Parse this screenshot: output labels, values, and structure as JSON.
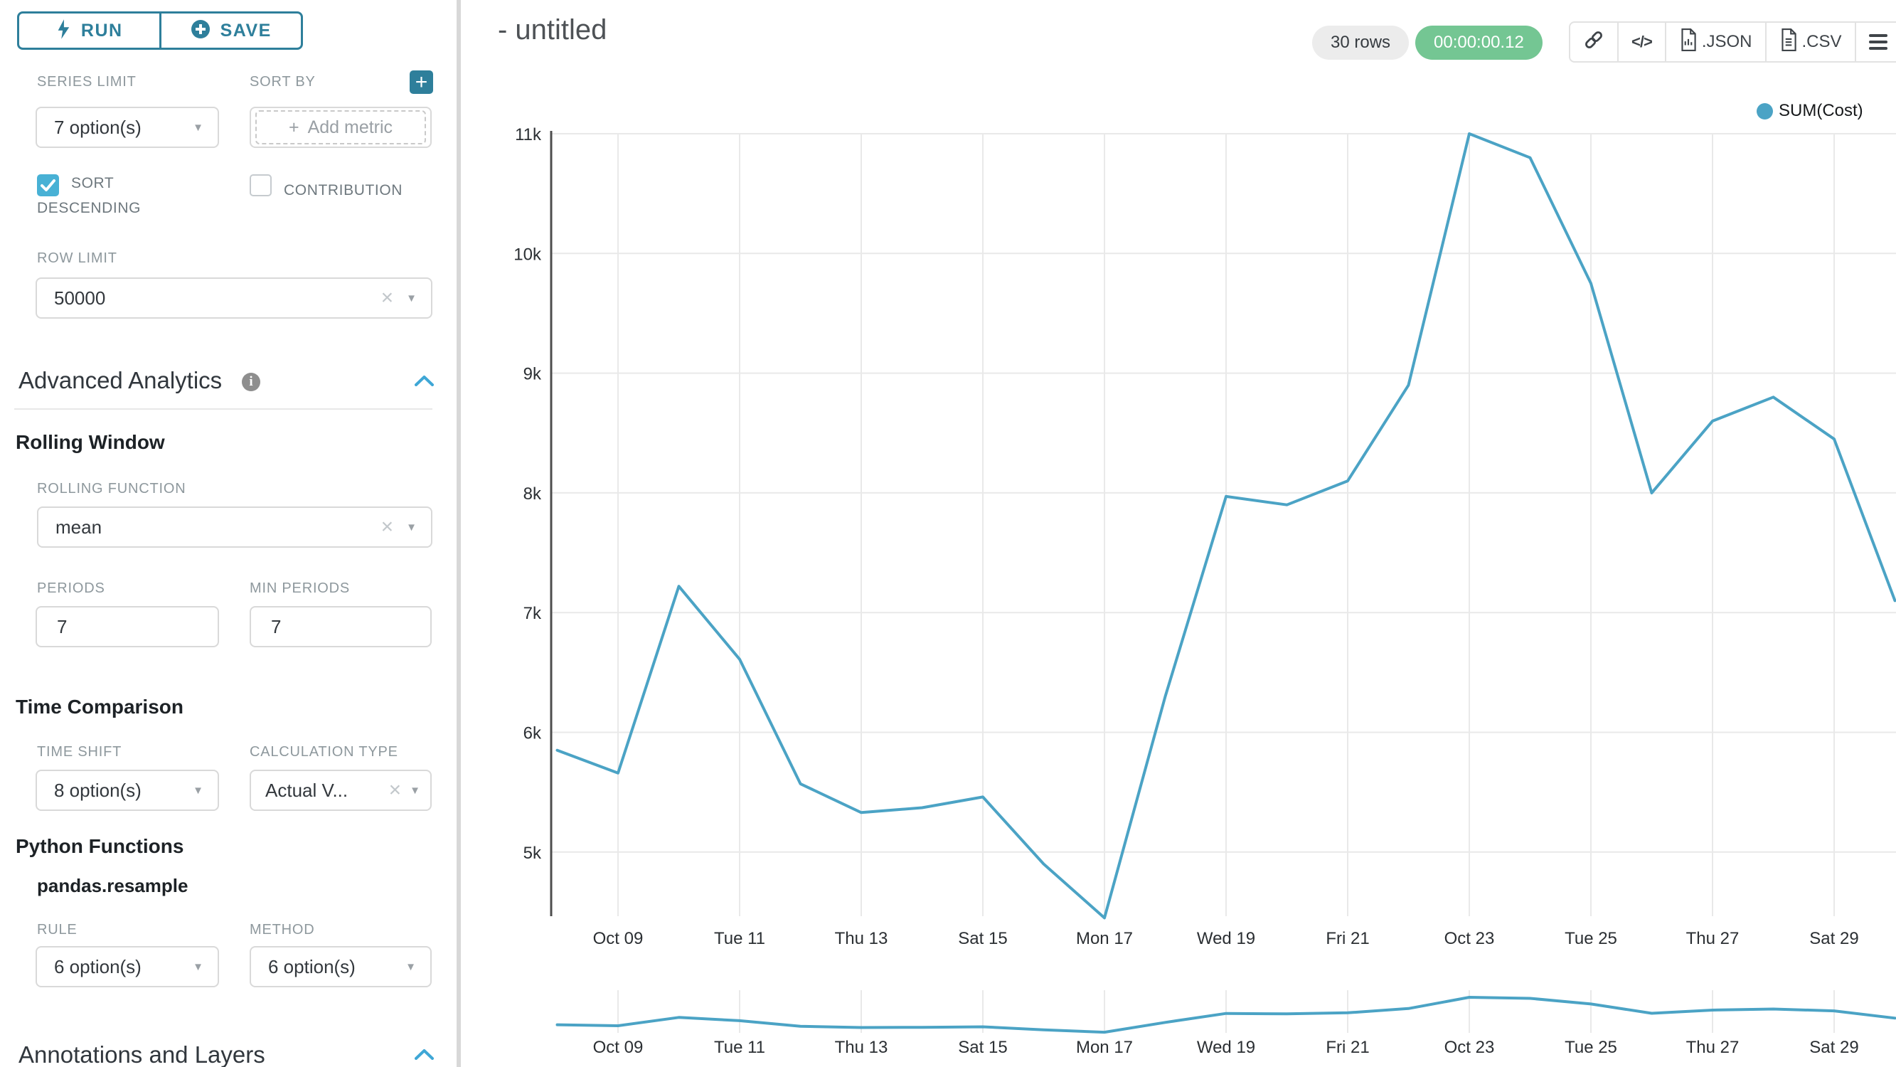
{
  "app": {
    "accent_teal": "#2E7F9B",
    "accent_blue": "#48B1D5",
    "chevron_blue": "#3FA7D6",
    "success_green": "#74C693",
    "line_color": "#4BA3C5"
  },
  "sidebar": {
    "run_label": "RUN",
    "save_label": "SAVE",
    "series_limit": {
      "label": "SERIES LIMIT",
      "value": "7 option(s)"
    },
    "sort_by": {
      "label": "SORT BY",
      "placeholder": "Add metric",
      "plus_sign": "+"
    },
    "sort_descending": {
      "label_line1": "SORT",
      "label_line2": "DESCENDING",
      "checked": true
    },
    "contribution": {
      "label": "CONTRIBUTION",
      "checked": false
    },
    "row_limit": {
      "label": "ROW LIMIT",
      "value": "50000"
    },
    "advanced_analytics": {
      "title": "Advanced Analytics"
    },
    "rolling_window": {
      "title": "Rolling Window",
      "rolling_function": {
        "label": "ROLLING FUNCTION",
        "value": "mean"
      },
      "periods": {
        "label": "PERIODS",
        "value": "7"
      },
      "min_periods": {
        "label": "MIN PERIODS",
        "value": "7"
      }
    },
    "time_comparison": {
      "title": "Time Comparison",
      "time_shift": {
        "label": "TIME SHIFT",
        "value": "8 option(s)"
      },
      "calculation_type": {
        "label": "CALCULATION TYPE",
        "value": "Actual V..."
      }
    },
    "python_functions": {
      "title": "Python Functions",
      "subtitle": "pandas.resample",
      "rule": {
        "label": "RULE",
        "value": "6 option(s)"
      },
      "method": {
        "label": "METHOD",
        "value": "6 option(s)"
      }
    },
    "annotations": {
      "title": "Annotations and Layers"
    }
  },
  "header": {
    "title": "- untitled",
    "row_count": "30 rows",
    "timer": "00:00:00.12",
    "export_buttons": [
      {
        "name": "share-link-button",
        "icon": "link-icon",
        "label": ""
      },
      {
        "name": "embed-code-button",
        "icon": "code-icon",
        "label": ""
      },
      {
        "name": "export-json-button",
        "icon": "file-json-icon",
        "label": ".JSON"
      },
      {
        "name": "export-csv-button",
        "icon": "file-csv-icon",
        "label": ".CSV"
      },
      {
        "name": "chart-menu-button",
        "icon": "menu-icon",
        "label": ""
      }
    ]
  },
  "chart_data": {
    "type": "line",
    "title": "",
    "legend_position": "top-right",
    "grid": true,
    "series": [
      {
        "name": "SUM(Cost)",
        "color": "#4BA3C5",
        "x": [
          "Oct 08",
          "Oct 09",
          "Oct 10",
          "Oct 11",
          "Oct 12",
          "Oct 13",
          "Oct 14",
          "Oct 15",
          "Oct 16",
          "Oct 17",
          "Oct 18",
          "Oct 19",
          "Oct 20",
          "Oct 21",
          "Oct 22",
          "Oct 23",
          "Oct 24",
          "Oct 25",
          "Oct 26",
          "Oct 27",
          "Oct 28",
          "Oct 29",
          "Oct 30"
        ],
        "values": [
          5850,
          5660,
          7220,
          6610,
          5570,
          5330,
          5370,
          5460,
          4900,
          4450,
          6300,
          7970,
          7900,
          8100,
          8900,
          11000,
          10800,
          9750,
          8000,
          8600,
          8800,
          8450,
          7100
        ]
      }
    ],
    "x_axis": {
      "tick_labels": [
        "Oct 09",
        "Tue 11",
        "Thu 13",
        "Sat 15",
        "Mon 17",
        "Wed 19",
        "Fri 21",
        "Oct 23",
        "Tue 25",
        "Thu 27",
        "Sat 29"
      ],
      "tick_day_index": [
        1,
        3,
        5,
        7,
        9,
        11,
        13,
        15,
        17,
        19,
        21
      ]
    },
    "y_axis": {
      "tick_labels": [
        "11k",
        "10k",
        "9k",
        "8k",
        "7k",
        "6k",
        "5k"
      ],
      "tick_values": [
        11000,
        10000,
        9000,
        8000,
        7000,
        6000,
        5000
      ]
    },
    "ylim": [
      4300,
      11200
    ],
    "minimap": {
      "present": true,
      "same_series": true
    }
  }
}
